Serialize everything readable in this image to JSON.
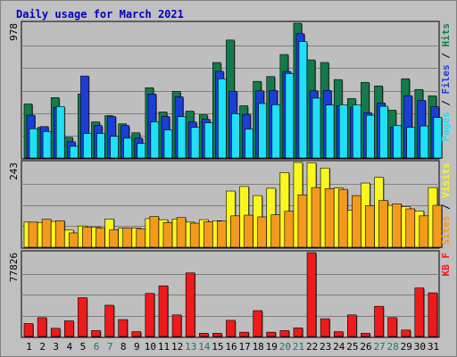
{
  "colors": {
    "frame_bg": "#C0C0C0",
    "plot_bg": "#BEBEBE",
    "title": "#0000C0",
    "hits": "#137B4B",
    "files": "#1A3ED8",
    "pages": "#1EE0F8",
    "visits": "#FAF71C",
    "sites": "#F39A1E",
    "kbf": "#EF1A1A",
    "weekend": "#1A7A5C",
    "gridline": "#7F7F7F"
  },
  "chart_data": {
    "type": "bar",
    "title": "Daily usage for March 2021",
    "categories": [
      "1",
      "2",
      "3",
      "4",
      "5",
      "6",
      "7",
      "8",
      "9",
      "10",
      "11",
      "12",
      "13",
      "14",
      "15",
      "16",
      "17",
      "18",
      "19",
      "20",
      "21",
      "22",
      "23",
      "24",
      "25",
      "26",
      "27",
      "28",
      "29",
      "30",
      "31"
    ],
    "weekend_days": [
      "6",
      "7",
      "13",
      "14",
      "20",
      "21",
      "27",
      "28"
    ],
    "panels": [
      {
        "id": "top",
        "ymax_label": "978",
        "ymax": 978,
        "legend": [
          {
            "key": "pages",
            "label": "Pages"
          },
          {
            "key": "sep1",
            "label": " / "
          },
          {
            "key": "files",
            "label": "Files"
          },
          {
            "key": "sep2",
            "label": " / "
          },
          {
            "key": "hits",
            "label": "Hits"
          }
        ],
        "series": [
          {
            "name": "Hits",
            "key": "hits",
            "values": [
              392,
              222,
              438,
              150,
              464,
              262,
              307,
              248,
              183,
              510,
              334,
              484,
              340,
              314,
              693,
              856,
              379,
              556,
              591,
              751,
              978,
              712,
              693,
              569,
              431,
              549,
              523,
              347,
              575,
              497,
              451
            ]
          },
          {
            "name": "Files",
            "key": "files",
            "values": [
              311,
              228,
              366,
              118,
              595,
              235,
              301,
              235,
              144,
              464,
              301,
              444,
              261,
              281,
              629,
              484,
              317,
              487,
              490,
              628,
              902,
              488,
              490,
              379,
              368,
              328,
              399,
              224,
              452,
              418,
              372
            ]
          },
          {
            "name": "Pages",
            "key": "pages",
            "values": [
              212,
              192,
              373,
              85,
              177,
              177,
              157,
              144,
              105,
              261,
              203,
              300,
              222,
              255,
              574,
              321,
              209,
              395,
              386,
              613,
              844,
              434,
              384,
              386,
              385,
              310,
              375,
              235,
              222,
              232,
              294
            ]
          }
        ]
      },
      {
        "id": "middle",
        "ymax_label": "243",
        "ymax": 243,
        "legend": [
          {
            "key": "sites",
            "label": "Sites"
          },
          {
            "key": "sep3",
            "label": " / "
          },
          {
            "key": "visits",
            "label": "Visits"
          }
        ],
        "series": [
          {
            "name": "Visits",
            "key": "visits",
            "values": [
              72,
              71,
              74,
              49,
              61,
              58,
              81,
              55,
              55,
              82,
              79,
              81,
              72,
              79,
              76,
              161,
              174,
              148,
              169,
              214,
              243,
              242,
              227,
              170,
              106,
              184,
              200,
              120,
              116,
              104,
              171
            ]
          },
          {
            "name": "Sites",
            "key": "sites",
            "values": [
              72,
              80,
              76,
              41,
              57,
              55,
              50,
              55,
              52,
              88,
              71,
              85,
              69,
              73,
              75,
              90,
              92,
              87,
              93,
              103,
              150,
              171,
              168,
              166,
              148,
              119,
              134,
              124,
              110,
              90,
              120
            ]
          }
        ]
      },
      {
        "id": "bottom",
        "ymax_label": "77826",
        "ymax": 77826,
        "legend": [
          {
            "key": "kbf",
            "label": "KB F"
          }
        ],
        "series": [
          {
            "name": "KB F",
            "key": "kbf",
            "values": [
              12000,
              17500,
              7600,
              14500,
              36000,
              5500,
              29000,
              15700,
              4500,
              40000,
              47000,
              20000,
              59000,
              3000,
              3000,
              15000,
              4000,
              24000,
              4000,
              5500,
              8000,
              77826,
              16500,
              4500,
              20000,
              3000,
              28000,
              17500,
              6000,
              45000,
              40500
            ]
          }
        ]
      }
    ],
    "grid": true,
    "legend_placement": "right"
  }
}
